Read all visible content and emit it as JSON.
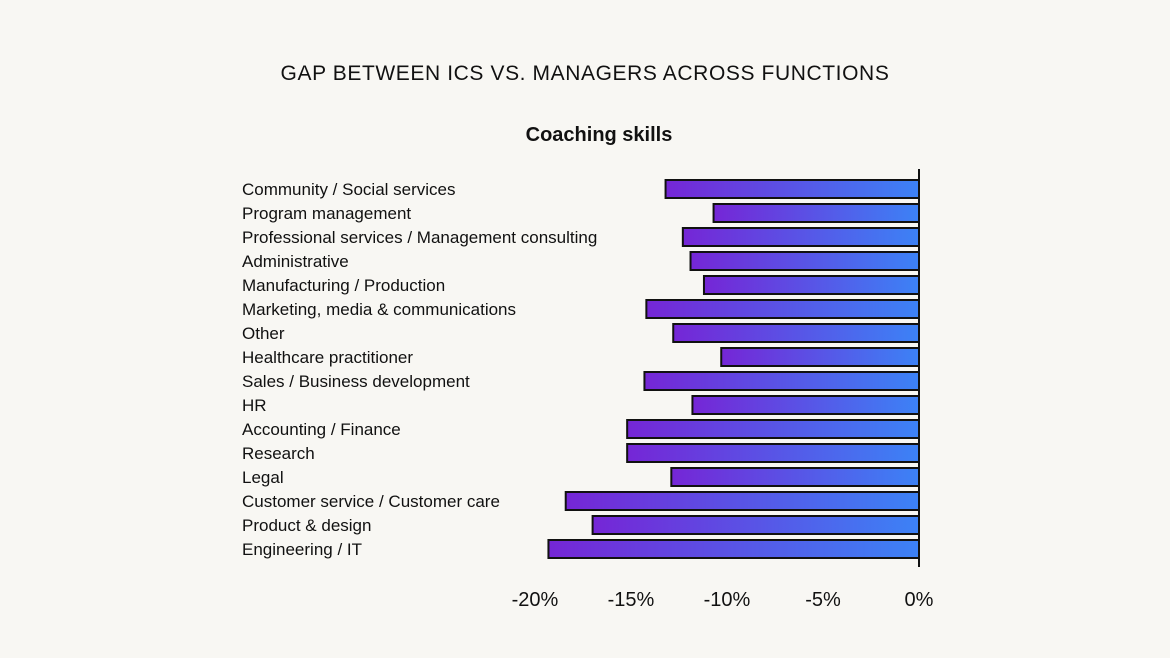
{
  "heading": "GAP BETWEEN ICS VS. MANAGERS ACROSS FUNCTIONS",
  "chart_data": {
    "type": "bar",
    "orientation": "horizontal",
    "title": "Coaching skills",
    "xlabel": "",
    "ylabel": "",
    "categories": [
      "Community / Social services",
      "Program management",
      "Professional services / Management consulting",
      "Administrative",
      "Manufacturing / Production",
      "Marketing, media & communications",
      "Other",
      "Healthcare practitioner",
      "Sales / Business development",
      "HR",
      "Accounting / Finance",
      "Research",
      "Legal",
      "Customer service / Customer care",
      "Product & design",
      "Engineering / IT"
    ],
    "values": [
      -13.2,
      -10.7,
      -12.3,
      -11.9,
      -11.2,
      -14.2,
      -12.8,
      -10.3,
      -14.3,
      -11.8,
      -15.2,
      -15.2,
      -12.9,
      -18.4,
      -17.0,
      -19.3
    ],
    "xlim": [
      -20,
      0
    ],
    "xticks": [
      -20,
      -15,
      -10,
      -5,
      0
    ],
    "xtick_labels": [
      "-20%",
      "-15%",
      "-10%",
      "-5%",
      "0%"
    ],
    "grid": false,
    "bar_gradient": [
      "#7526d6",
      "#3c82f6"
    ],
    "bar_outline": "#111111"
  }
}
